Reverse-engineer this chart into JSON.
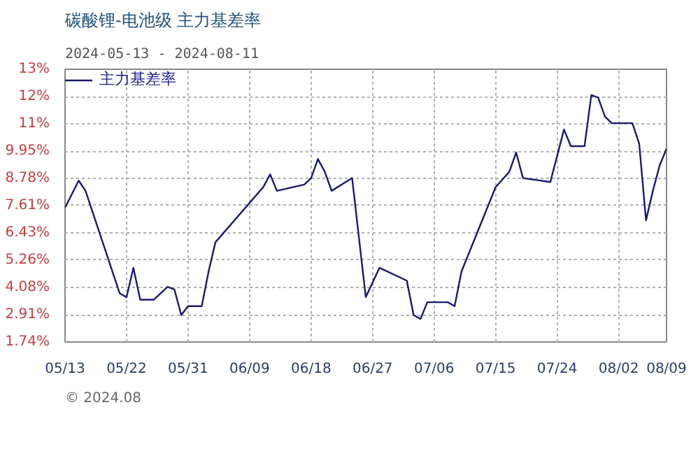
{
  "chart_data": {
    "type": "line",
    "title": "碳酸锂-电池级 主力基差率",
    "subtitle": "2024-05-13 - 2024-08-11",
    "x": [
      "2024-05-13",
      "2024-05-15",
      "2024-05-16",
      "2024-05-21",
      "2024-05-22",
      "2024-05-23",
      "2024-05-24",
      "2024-05-26",
      "2024-05-28",
      "2024-05-29",
      "2024-05-30",
      "2024-05-31",
      "2024-06-02",
      "2024-06-03",
      "2024-06-04",
      "2024-06-11",
      "2024-06-12",
      "2024-06-13",
      "2024-06-17",
      "2024-06-18",
      "2024-06-19",
      "2024-06-20",
      "2024-06-21",
      "2024-06-24",
      "2024-06-26",
      "2024-06-28",
      "2024-07-02",
      "2024-07-03",
      "2024-07-04",
      "2024-07-05",
      "2024-07-08",
      "2024-07-09",
      "2024-07-10",
      "2024-07-15",
      "2024-07-17",
      "2024-07-18",
      "2024-07-19",
      "2024-07-23",
      "2024-07-25",
      "2024-07-26",
      "2024-07-28",
      "2024-07-29",
      "2024-07-30",
      "2024-07-31",
      "2024-08-01",
      "2024-08-04",
      "2024-08-05",
      "2024-08-06",
      "2024-08-07",
      "2024-08-08",
      "2024-08-09"
    ],
    "series": [
      {
        "name": "主力基差率",
        "color": "#1a1a6e",
        "values": [
          7.52,
          8.68,
          8.24,
          3.83,
          3.67,
          4.93,
          3.56,
          3.56,
          4.11,
          4.0,
          2.9,
          3.28,
          3.28,
          4.77,
          6.03,
          8.4,
          8.95,
          8.24,
          8.51,
          8.79,
          9.61,
          9.06,
          8.24,
          8.79,
          3.67,
          4.93,
          4.38,
          2.9,
          2.73,
          3.45,
          3.45,
          3.28,
          4.77,
          8.4,
          9.06,
          9.89,
          8.79,
          8.62,
          10.88,
          10.16,
          10.16,
          12.36,
          12.25,
          11.43,
          11.15,
          11.15,
          10.27,
          6.97,
          8.24,
          9.34,
          10.05
        ]
      }
    ],
    "xlim": [
      "2024-05-13",
      "2024-08-09"
    ],
    "xticks": [
      {
        "value": "2024-05-13",
        "label": "05/13"
      },
      {
        "value": "2024-05-22",
        "label": "05/22"
      },
      {
        "value": "2024-05-31",
        "label": "05/31"
      },
      {
        "value": "2024-06-09",
        "label": "06/09"
      },
      {
        "value": "2024-06-18",
        "label": "06/18"
      },
      {
        "value": "2024-06-27",
        "label": "06/27"
      },
      {
        "value": "2024-07-06",
        "label": "07/06"
      },
      {
        "value": "2024-07-15",
        "label": "07/15"
      },
      {
        "value": "2024-07-24",
        "label": "07/24"
      },
      {
        "value": "2024-08-02",
        "label": "08/02"
      },
      {
        "value": "2024-08-09",
        "label": "08/09"
      }
    ],
    "ylim": [
      1.74,
      13.47
    ],
    "yticks": [
      {
        "value": 1.74,
        "label": "1.74%"
      },
      {
        "value": 2.91,
        "label": "2.91%"
      },
      {
        "value": 4.08,
        "label": "4.08%"
      },
      {
        "value": 5.26,
        "label": "5.26%"
      },
      {
        "value": 6.43,
        "label": "6.43%"
      },
      {
        "value": 7.61,
        "label": "7.61%"
      },
      {
        "value": 8.78,
        "label": "8.78%"
      },
      {
        "value": 9.95,
        "label": "9.95%"
      },
      {
        "value": 11.12,
        "label": "11%"
      },
      {
        "value": 12.29,
        "label": "12%"
      },
      {
        "value": 13.47,
        "label": "13%"
      }
    ],
    "grid": true,
    "legend": "top left",
    "line_style": "solid",
    "marker": "none",
    "annotations": [
      "© 2024.08"
    ]
  }
}
